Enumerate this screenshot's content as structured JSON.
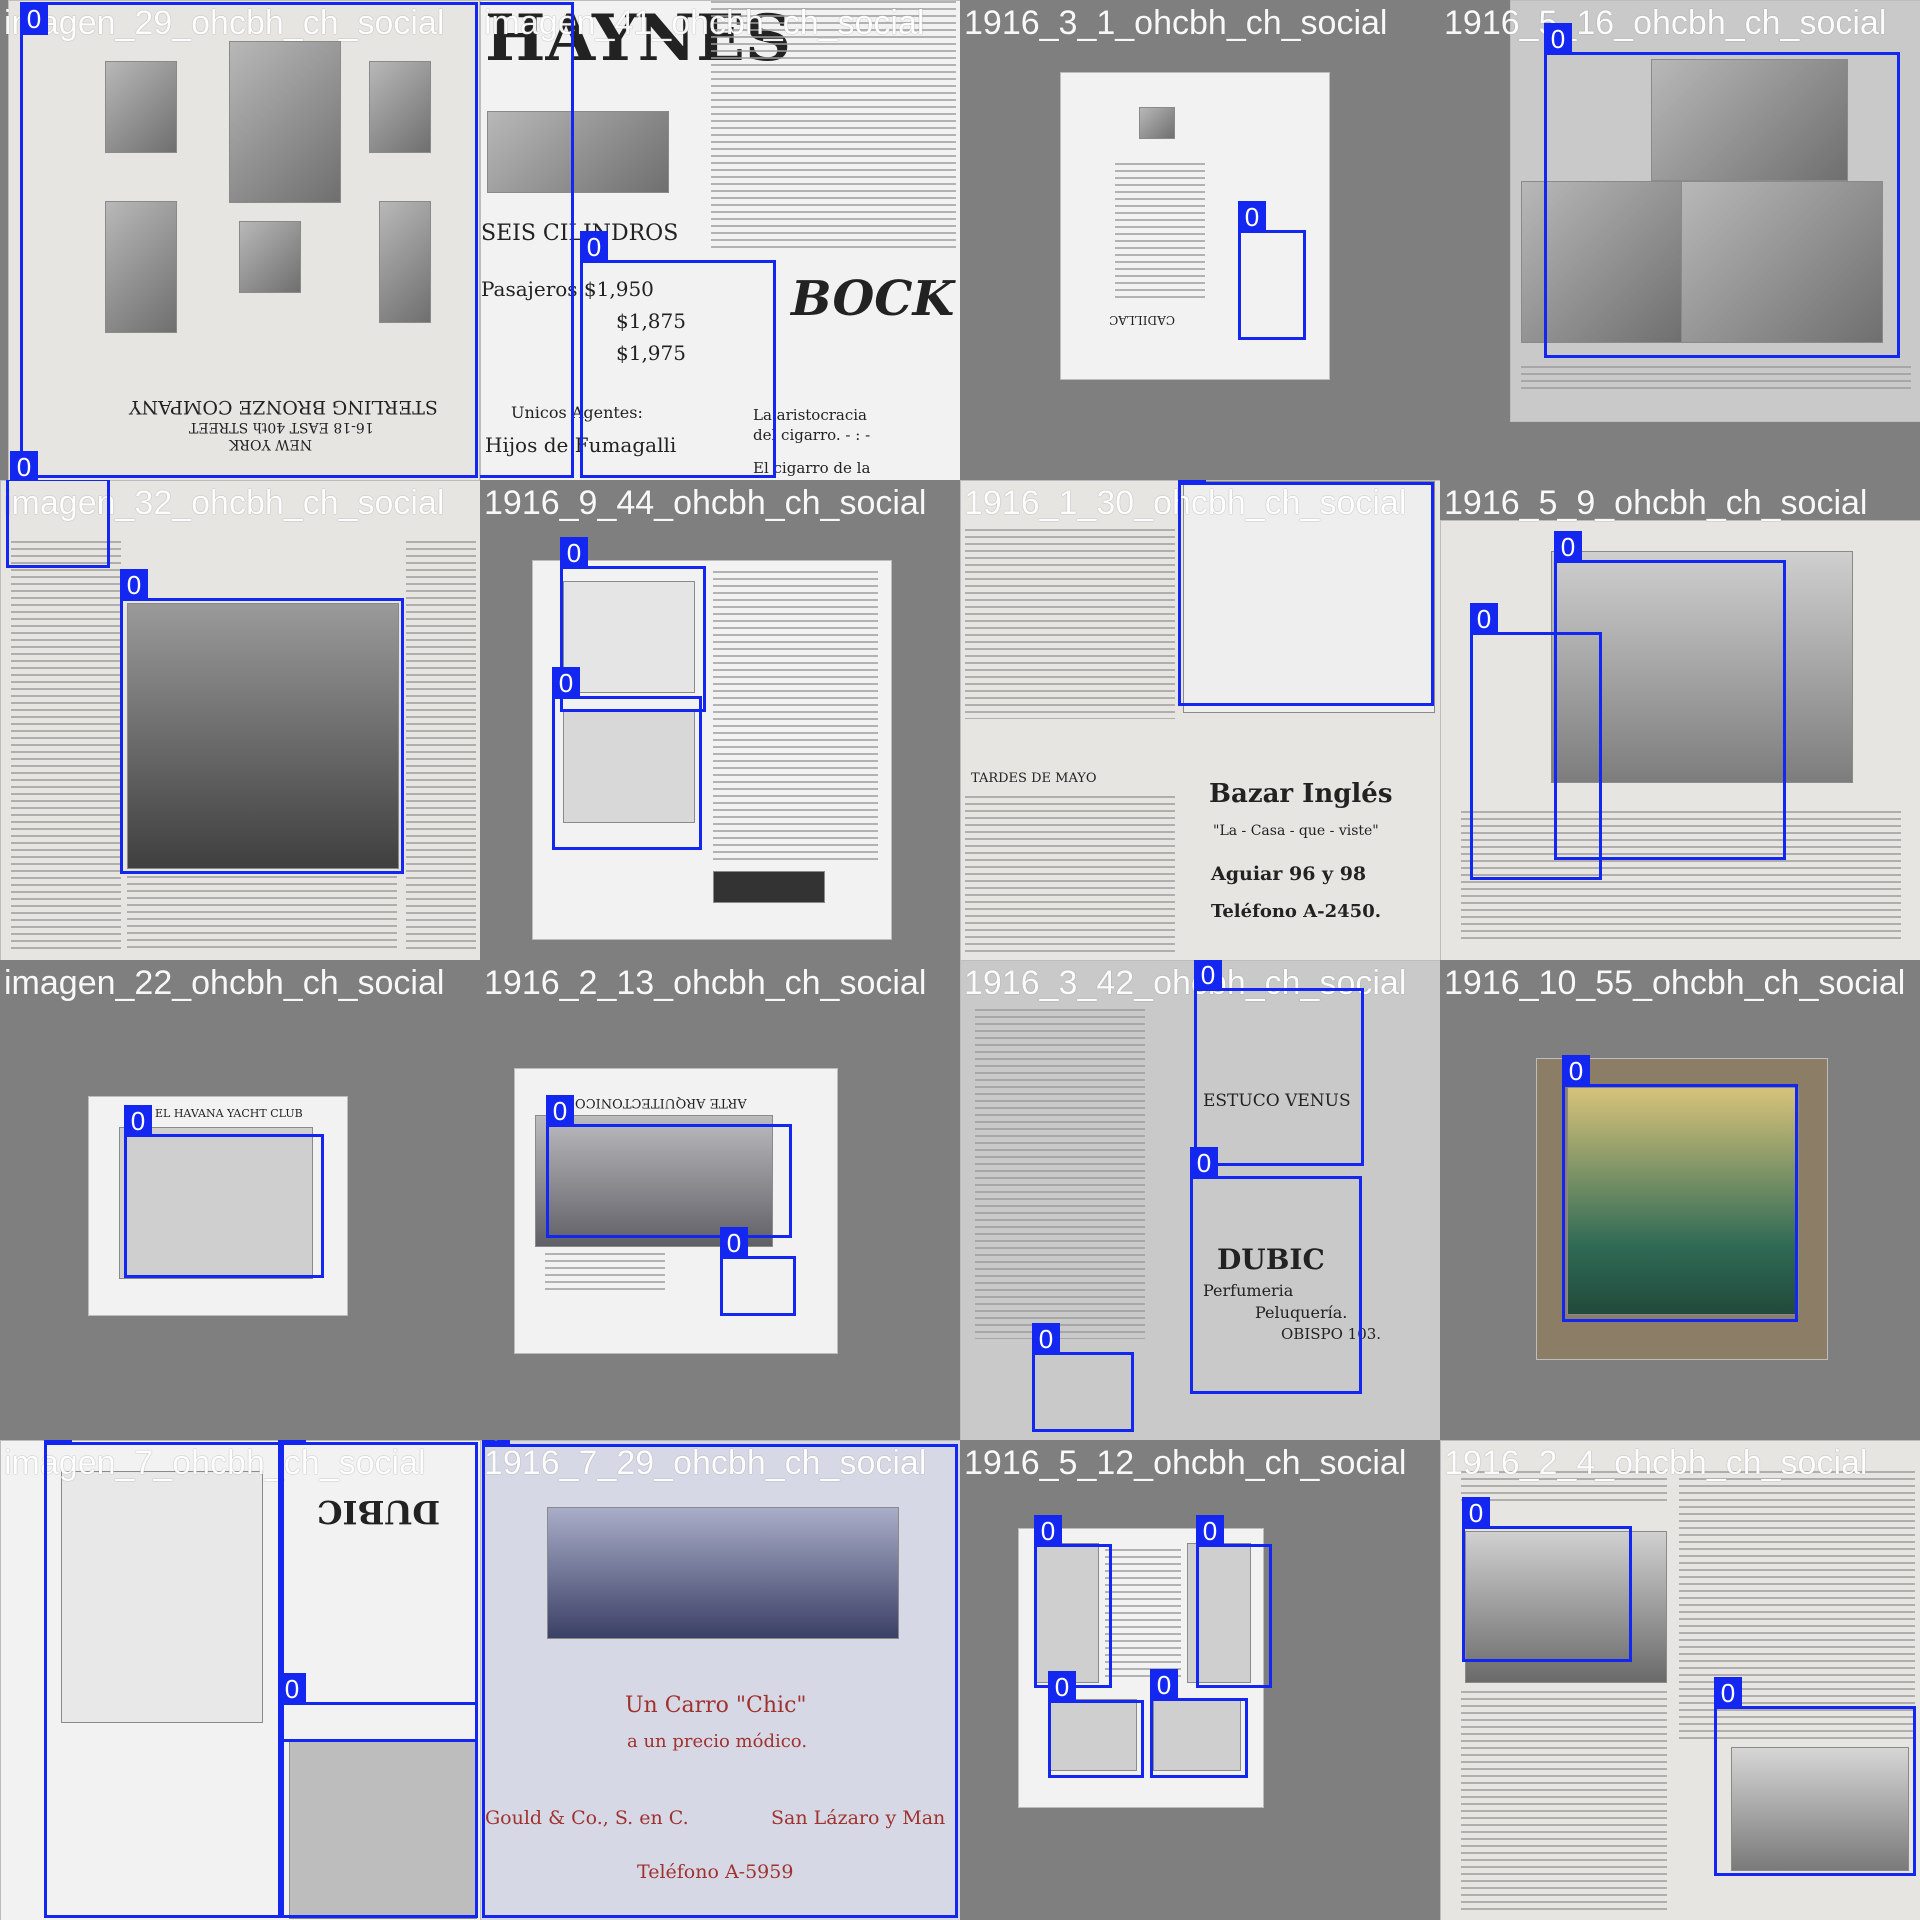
{
  "tiles": [
    {
      "label": "imagen_29_ohcbh_ch_social"
    },
    {
      "label": "imagen_41_ohcbh_ch_social"
    },
    {
      "label": "1916_3_1_ohcbh_ch_social"
    },
    {
      "label": "1916_5_16_ohcbh_ch_social"
    },
    {
      "label": "imagen_32_ohcbh_ch_social"
    },
    {
      "label": "1916_9_44_ohcbh_ch_social"
    },
    {
      "label": "1916_1_30_ohcbh_ch_social"
    },
    {
      "label": "1916_5_9_ohcbh_ch_social"
    },
    {
      "label": "imagen_22_ohcbh_ch_social"
    },
    {
      "label": "1916_2_13_ohcbh_ch_social"
    },
    {
      "label": "1916_3_42_ohcbh_ch_social"
    },
    {
      "label": "1916_10_55_ohcbh_ch_social"
    },
    {
      "label": "imagen_7_ohcbh_ch_social"
    },
    {
      "label": "1916_7_29_ohcbh_ch_social"
    },
    {
      "label": "1916_5_12_ohcbh_ch_social"
    },
    {
      "label": "1916_2_4_ohcbh_ch_social"
    }
  ],
  "box_class": "0",
  "colors": {
    "box": "#1427f0",
    "background": "#7f7f7f"
  },
  "captions": {
    "t0_company": "STERLING BRONZE COMPANY",
    "t0_address": "16-18 EAST 40th STREET",
    "t0_city": "NEW YORK",
    "t1_brand": "HAYNES",
    "t1_model": "SEIS CILINDROS",
    "t1_price1": "Pasajeros $1,950",
    "t1_price2": "$1,875",
    "t1_price3": "$1,975",
    "t1_agents": "Unicos Agentes:",
    "t1_dealer": "Hijos de Fumagalli",
    "t1_bock": "BOCK",
    "t1_bock_line1": "La aristocracia",
    "t1_bock_line2": "del cigarro. - : -",
    "t1_bock_line3": "El cigarro de la",
    "t3_cadillac": "CADILLAC",
    "t6_may": "TARDES DE MAYO",
    "t6_bazar": "Bazar Inglés",
    "t6_slogan": "\"La - Casa - que - viste\"",
    "t6_address": "Aguiar 96 y 98",
    "t6_phone": "Teléfono A-2450.",
    "t8_club": "EL HAVANA YACHT CLUB",
    "t9_arte": "ARTE ARQUITECTONICO",
    "t10_estuco": "ESTUCO VENUS",
    "t10_dubic": "DUBIC",
    "t10_perf": "Perfumeria",
    "t10_pelu": "Peluquería.",
    "t10_obispo": "OBISPO 103.",
    "t13_carro": "Un Carro \"Chic\"",
    "t13_precio": "a un precio módico.",
    "t13_gould": "Gould & Co., S. en C.",
    "t13_lazaro": "San Lázaro y Man",
    "t13_tel": "Teléfono A-5959"
  }
}
